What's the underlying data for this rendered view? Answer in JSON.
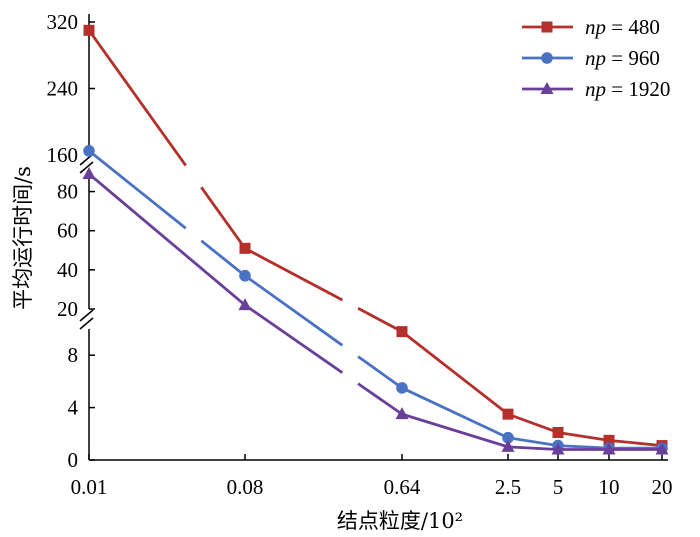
{
  "chart_data": {
    "type": "line",
    "title": "",
    "xlabel": "结点粒度/10²",
    "ylabel": "平均运行时间/s",
    "x": [
      "0.01",
      "0.08",
      "0.64",
      "2.5",
      "5",
      "10",
      "20"
    ],
    "y_axis": {
      "broken": true,
      "segments": [
        {
          "range": [
            0,
            10
          ],
          "ticks": [
            "0",
            "4",
            "8"
          ]
        },
        {
          "range": [
            20,
            90
          ],
          "ticks": [
            "20",
            "40",
            "60",
            "80"
          ]
        },
        {
          "range": [
            160,
            320
          ],
          "ticks": [
            "160",
            "240",
            "320"
          ]
        }
      ]
    },
    "series": [
      {
        "name": "np = 480",
        "name_italic": "np",
        "name_rest": " = 480",
        "color": "#b5302a",
        "marker": "square",
        "values": [
          310,
          51,
          9.8,
          3.5,
          2.1,
          1.5,
          1.1
        ]
      },
      {
        "name": "np = 960",
        "name_italic": "np",
        "name_rest": " = 960",
        "color": "#4a72c2",
        "marker": "circle",
        "values": [
          165,
          37,
          5.5,
          1.7,
          1.1,
          0.9,
          0.9
        ]
      },
      {
        "name": "np = 1920",
        "name_italic": "np",
        "name_rest": " = 1920",
        "color": "#6a3f9a",
        "marker": "triangle",
        "values": [
          89,
          22,
          3.5,
          1.0,
          0.8,
          0.8,
          0.8
        ]
      }
    ],
    "legend_position": "top-right",
    "grid": false
  }
}
